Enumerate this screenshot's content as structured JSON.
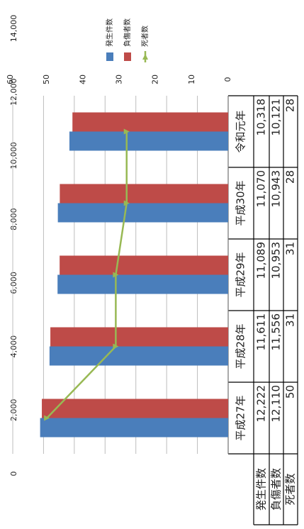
{
  "chart_data": {
    "type": "bar",
    "categories": [
      "平成27年",
      "平成28年",
      "平成29年",
      "平成30年",
      "令和元年"
    ],
    "series": [
      {
        "name": "発生件数",
        "color": "#4a7ebb",
        "values": [
          12222,
          11611,
          11089,
          11070,
          10318
        ],
        "value_labels": [
          "12,222",
          "11,611",
          "11,089",
          "11,070",
          "10,318"
        ]
      },
      {
        "name": "負傷者数",
        "color": "#be4b48",
        "values": [
          12110,
          11556,
          10953,
          10943,
          10121
        ],
        "value_labels": [
          "12,110",
          "11,556",
          "10,953",
          "10,943",
          "10,121"
        ]
      },
      {
        "name": "死者数",
        "color": "#98b954",
        "type": "line",
        "axis": "y2",
        "values": [
          50,
          31,
          31,
          28,
          28
        ]
      }
    ],
    "ylim": [
      0,
      14000
    ],
    "yticks": [
      0,
      {
        "value": 2000,
        "label": "2,000"
      },
      {
        "value": 4000,
        "label": "4,000"
      },
      {
        "value": 6000,
        "label": "6,000"
      },
      {
        "value": 8000,
        "label": "8,000"
      },
      {
        "value": 10000,
        "label": "10,000"
      },
      {
        "value": 12000,
        "label": "12,000"
      },
      {
        "value": 14000,
        "label": "14,000"
      }
    ],
    "y2lim": [
      0,
      60
    ],
    "y2ticks": [
      0,
      10,
      20,
      30,
      40,
      50,
      60
    ],
    "grid": true,
    "legend": "top-right"
  }
}
